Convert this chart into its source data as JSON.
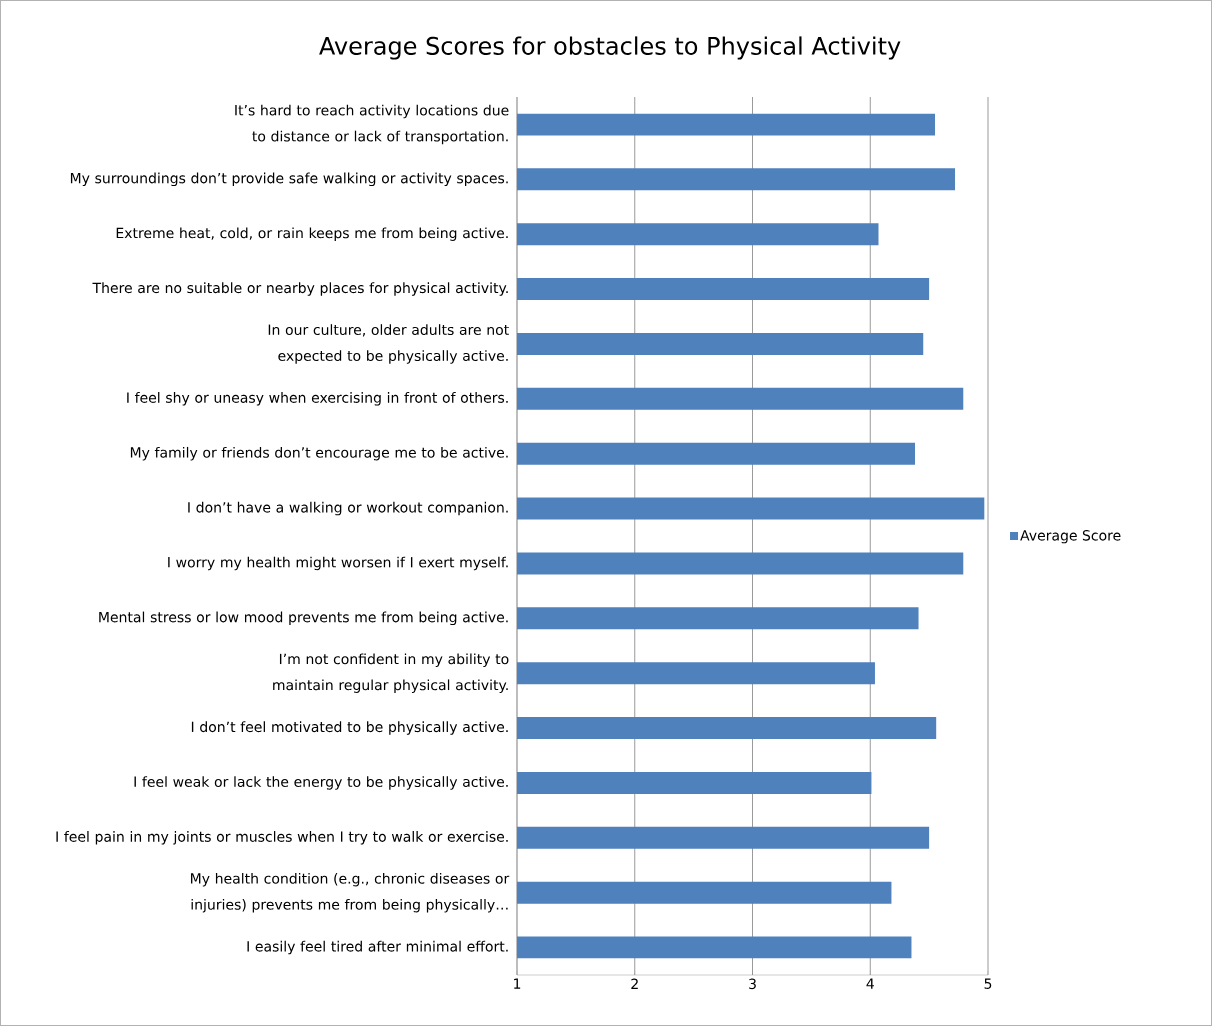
{
  "chart_data": {
    "type": "bar",
    "orientation": "horizontal",
    "title": "Average Scores for obstacles to Physical Activity",
    "categories": [
      "It’s hard to reach activity locations due to distance or lack of transportation.",
      "My surroundings don’t provide safe walking or activity spaces.",
      "Extreme heat, cold, or rain keeps me from being active.",
      "There are no suitable or nearby places for physical activity.",
      "In our culture, older adults are not expected to be physically active.",
      "I feel shy or uneasy when exercising in front of others.",
      "My family or friends don’t encourage me to be active.",
      "I don’t have a walking or workout companion.",
      "I worry my health might worsen if I exert myself.",
      "Mental stress or low mood prevents me from being active.",
      "I’m not confident in my ability to maintain regular physical activity.",
      "I don’t feel motivated to be physically active.",
      "I feel weak or lack the energy to be physically active.",
      "I feel pain in my joints or muscles when I try to walk or exercise.",
      "My health condition (e.g., chronic diseases or injuries) prevents me from being physically…",
      "I easily feel tired after minimal effort."
    ],
    "series": [
      {
        "name": "Average Score",
        "color": "#4f81bd",
        "values": [
          4.55,
          4.72,
          4.07,
          4.5,
          4.45,
          4.79,
          4.38,
          4.97,
          4.79,
          4.41,
          4.04,
          4.56,
          4.01,
          4.5,
          4.18,
          4.35
        ]
      }
    ],
    "xlim": [
      1,
      5
    ],
    "xticks": [
      1,
      2,
      3,
      4,
      5
    ],
    "grid": "x",
    "legend": "right"
  }
}
